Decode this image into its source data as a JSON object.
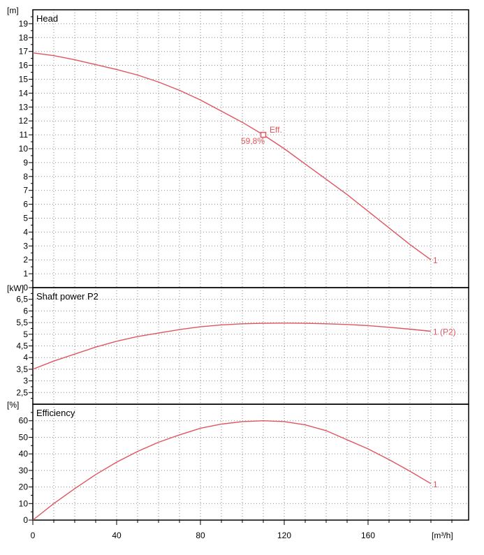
{
  "colors": {
    "curve": "#e0555e",
    "grid": "#8a8a8a",
    "axis": "#000000",
    "background": "#ffffff"
  },
  "x_axis": {
    "unit": "[m³/h]",
    "ticks": [
      "0",
      "40",
      "80",
      "120",
      "160"
    ],
    "range": [
      0,
      208
    ],
    "tick_values": [
      0,
      40,
      80,
      120,
      160
    ],
    "minor_step": 10
  },
  "chart_data": [
    {
      "type": "line",
      "title": "Head",
      "ylabel": "[m]",
      "ylim": [
        0,
        20
      ],
      "grid": true,
      "y_ticks": [
        "0",
        "1",
        "2",
        "3",
        "4",
        "5",
        "6",
        "7",
        "8",
        "9",
        "10",
        "11",
        "12",
        "13",
        "14",
        "15",
        "16",
        "17",
        "18",
        "19"
      ],
      "y_tick_values": [
        0,
        1,
        2,
        3,
        4,
        5,
        6,
        7,
        8,
        9,
        10,
        11,
        12,
        13,
        14,
        15,
        16,
        17,
        18,
        19
      ],
      "series": [
        {
          "name": "1",
          "x": [
            0,
            10,
            20,
            30,
            40,
            50,
            60,
            70,
            80,
            90,
            100,
            110,
            120,
            130,
            140,
            150,
            160,
            170,
            180,
            190
          ],
          "y": [
            16.9,
            16.7,
            16.4,
            16.05,
            15.7,
            15.3,
            14.8,
            14.2,
            13.5,
            12.7,
            11.9,
            11.0,
            10.0,
            8.9,
            7.8,
            6.7,
            5.5,
            4.3,
            3.1,
            2.0
          ]
        }
      ],
      "annotations": {
        "duty_point": {
          "x": 110,
          "y": 11.0
        },
        "eff_label": "Eff.",
        "eff_value": "59,8%"
      }
    },
    {
      "type": "line",
      "title": "Shaft power P2",
      "ylabel": "[kW]",
      "ylim": [
        2,
        7
      ],
      "grid": true,
      "y_ticks": [
        "2,5",
        "3",
        "3,5",
        "4",
        "4,5",
        "5",
        "5,5",
        "6",
        "6,5"
      ],
      "y_tick_values": [
        2.5,
        3,
        3.5,
        4,
        4.5,
        5,
        5.5,
        6,
        6.5
      ],
      "series": [
        {
          "name": "1 (P2)",
          "x": [
            0,
            10,
            20,
            30,
            40,
            50,
            60,
            70,
            80,
            90,
            100,
            110,
            120,
            130,
            140,
            150,
            160,
            170,
            180,
            190
          ],
          "y": [
            3.5,
            3.85,
            4.15,
            4.45,
            4.7,
            4.9,
            5.05,
            5.2,
            5.32,
            5.4,
            5.45,
            5.47,
            5.48,
            5.47,
            5.45,
            5.42,
            5.37,
            5.3,
            5.22,
            5.13
          ]
        }
      ]
    },
    {
      "type": "line",
      "title": "Efficiency",
      "ylabel": "[%]",
      "ylim": [
        0,
        70
      ],
      "grid": true,
      "y_ticks": [
        "0",
        "10",
        "20",
        "30",
        "40",
        "50",
        "60"
      ],
      "y_tick_values": [
        0,
        10,
        20,
        30,
        40,
        50,
        60
      ],
      "series": [
        {
          "name": "1",
          "x": [
            0,
            10,
            20,
            30,
            40,
            50,
            60,
            70,
            80,
            90,
            100,
            110,
            120,
            130,
            140,
            150,
            160,
            170,
            180,
            190
          ],
          "y": [
            0,
            10,
            19,
            27.5,
            35,
            41.5,
            47,
            51.5,
            55.5,
            58,
            59.5,
            60,
            59.5,
            57.5,
            54,
            48.5,
            43,
            36.5,
            29.5,
            22
          ]
        }
      ]
    }
  ]
}
